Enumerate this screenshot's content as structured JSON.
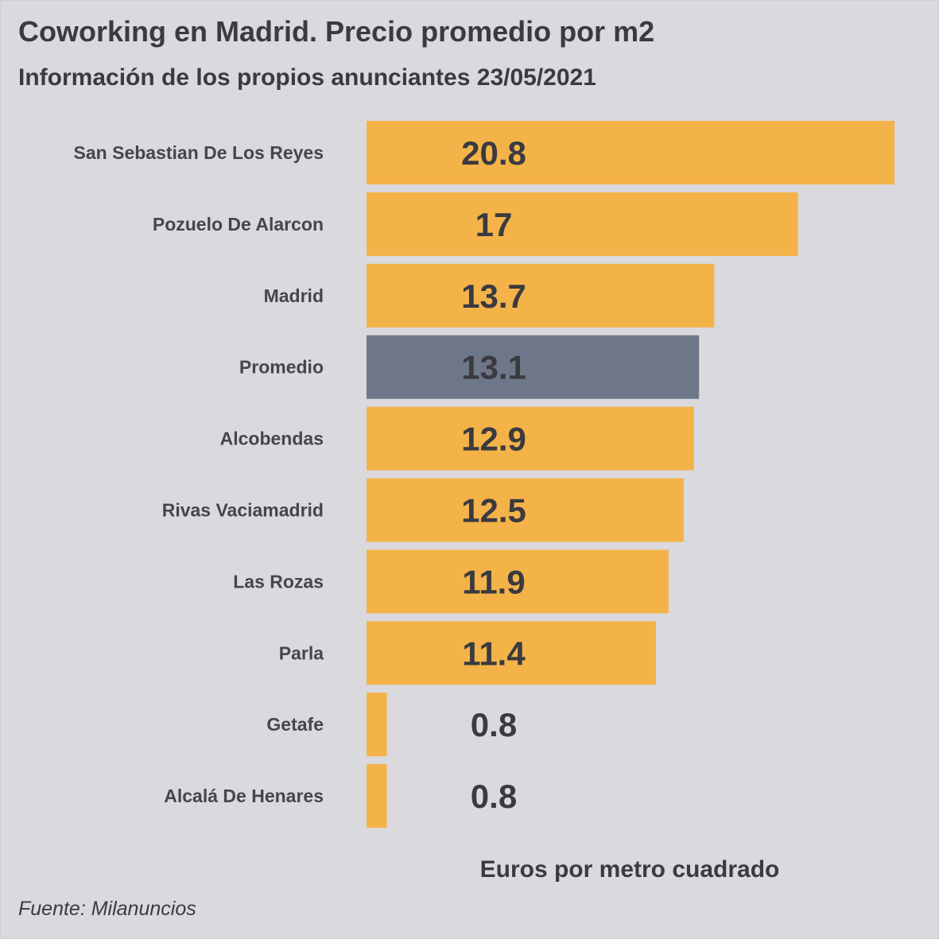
{
  "title": "Coworking en Madrid. Precio promedio por m2",
  "subtitle": "Información de los propios anunciantes 23/05/2021",
  "source": "Fuente: Milanuncios",
  "chart_data": {
    "type": "bar",
    "orientation": "horizontal",
    "categories": [
      "San Sebastian De Los Reyes",
      "Pozuelo De Alarcon",
      "Madrid",
      "Promedio",
      "Alcobendas",
      "Rivas Vaciamadrid",
      "Las Rozas",
      "Parla",
      "Getafe",
      "Alcalá De Henares"
    ],
    "values": [
      20.8,
      17,
      13.7,
      13.1,
      12.9,
      12.5,
      11.9,
      11.4,
      0.8,
      0.8
    ],
    "value_labels": [
      "20.8",
      "17",
      "13.7",
      "13.1",
      "12.9",
      "12.5",
      "11.9",
      "11.4",
      "0.8",
      "0.8"
    ],
    "highlight_category": "Promedio",
    "xlabel": "Euros por metro cuadrado",
    "ylabel": "",
    "xlim": [
      0,
      20.8
    ],
    "grid": false,
    "legend": "none",
    "colors": {
      "bar": "#f4b348",
      "highlight": "#6e7789",
      "background": "#d9d9de",
      "text": "#3a3a40"
    }
  }
}
